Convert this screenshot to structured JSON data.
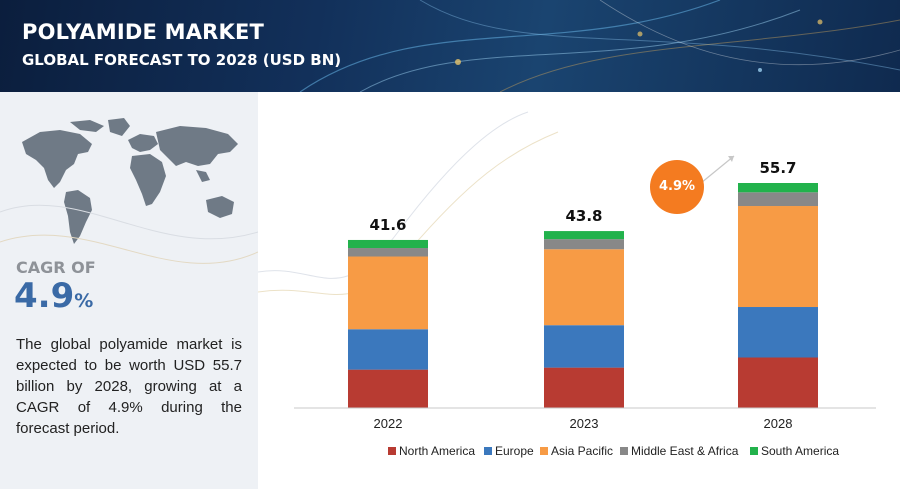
{
  "header": {
    "title": "POLYAMIDE MARKET",
    "subtitle": "GLOBAL FORECAST TO 2028 (USD BN)"
  },
  "summary": {
    "cagr_label": "CAGR OF",
    "cagr_value": "4.9",
    "cagr_unit": "%",
    "description": "The global polyamide market is expected to be worth USD 55.7 billion by 2028, growing at a CAGR of 4.9% during the forecast period.",
    "badge": "4.9%"
  },
  "chart_data": {
    "type": "bar",
    "stacked": true,
    "categories": [
      "2022",
      "2023",
      "2028"
    ],
    "totals_labels": [
      "41.6",
      "43.8",
      "55.7"
    ],
    "series": [
      {
        "name": "North America",
        "color": "#b83b32",
        "values": [
          9.5,
          10.0,
          12.5
        ]
      },
      {
        "name": "Europe",
        "color": "#3b78bd",
        "values": [
          10.0,
          10.5,
          12.5
        ]
      },
      {
        "name": "Asia Pacific",
        "color": "#f79b45",
        "values": [
          18.0,
          18.8,
          25.0
        ]
      },
      {
        "name": "Middle East & Africa",
        "color": "#888888",
        "values": [
          2.1,
          2.5,
          3.4
        ]
      },
      {
        "name": "South America",
        "color": "#22b24c",
        "values": [
          2.0,
          2.0,
          2.3
        ]
      }
    ],
    "ylim": [
      0,
      60
    ],
    "legend_position": "bottom",
    "grid": false
  }
}
